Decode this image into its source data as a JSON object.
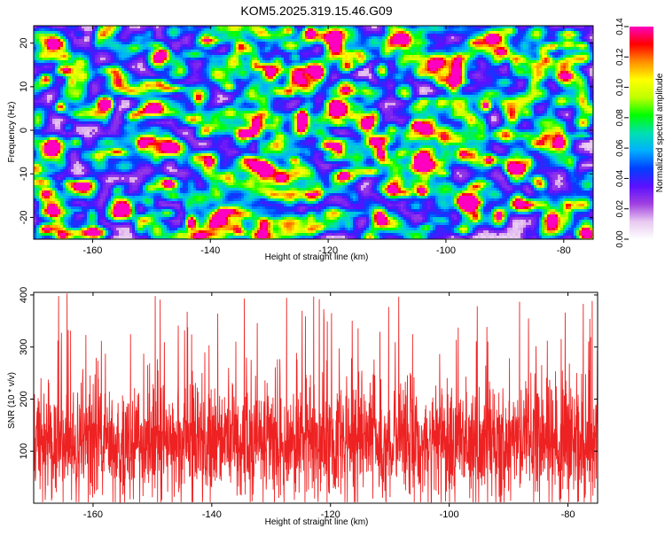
{
  "title": "KOM5.2025.319.15.46.G09",
  "chart_data": [
    {
      "type": "heatmap",
      "xlabel": "Height of straight line (km)",
      "ylabel": "Frequency (Hz)",
      "xlim": [
        -170,
        -75
      ],
      "ylim": [
        -25,
        24
      ],
      "xticks": [
        -160,
        -140,
        -120,
        -100,
        -80
      ],
      "yticks": [
        -20,
        -10,
        0,
        10,
        20
      ],
      "colorbar": {
        "label": "Normalized spectral amplitude",
        "range": [
          0,
          0.14
        ],
        "ticks": [
          "0.00",
          "0.02",
          "0.04",
          "0.06",
          "0.08",
          "0.10",
          "0.12",
          "0.14"
        ],
        "colors": [
          "#ffffff",
          "#e8c8f0",
          "#a040e0",
          "#5a10ff",
          "#0040ff",
          "#00b0ff",
          "#00e0b0",
          "#00ff00",
          "#c0ff00",
          "#ffff00",
          "#ff9000",
          "#ff0000",
          "#ff00c0"
        ]
      }
    },
    {
      "type": "line",
      "xlabel": "Height of straight line (km)",
      "ylabel": "SNR (10 * v/v)",
      "xlim": [
        -170,
        -75
      ],
      "ylim": [
        0,
        405
      ],
      "xticks": [
        -160,
        -140,
        -120,
        -100,
        -80
      ],
      "yticks": [
        100,
        200,
        300,
        400
      ],
      "series": [
        {
          "color": "#ee2222",
          "mean": 115,
          "noise_std": 55,
          "peak_max": 405,
          "n_samples": 2400
        }
      ]
    }
  ]
}
